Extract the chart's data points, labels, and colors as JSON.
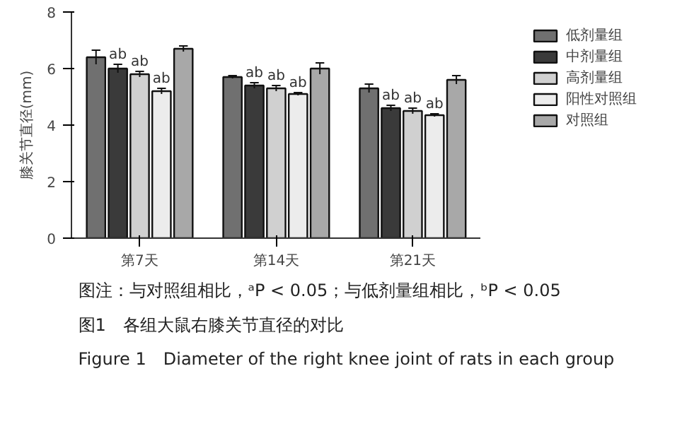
{
  "chart_data": {
    "type": "bar",
    "title": "图1　各组大鼠右膝关节直径的对比",
    "subtitle": "Figure 1　Diameter of the right knee joint of rats in each group",
    "ylabel": "膝关节直径(mm)",
    "annotations": [
      "图注：与对照组相比，ᵃP < 0.05；与低剂量组相比，ᵇP < 0.05"
    ],
    "categories": [
      "第7天",
      "第14天",
      "第21天"
    ],
    "series": [
      {
        "name": "低剂量组",
        "color": "#707070",
        "values": [
          6.4,
          5.7,
          5.3
        ],
        "errors": [
          0.25,
          0.05,
          0.15
        ]
      },
      {
        "name": "中剂量组",
        "color": "#3a3a3a",
        "values": [
          6.0,
          5.4,
          4.6
        ],
        "errors": [
          0.15,
          0.1,
          0.1
        ],
        "value_labels": [
          "ab",
          "ab",
          "ab"
        ]
      },
      {
        "name": "高剂量组",
        "color": "#d0d0d0",
        "values": [
          5.8,
          5.3,
          4.5
        ],
        "errors": [
          0.1,
          0.1,
          0.1
        ],
        "value_labels": [
          "ab",
          "ab",
          "ab"
        ]
      },
      {
        "name": "阳性对照组",
        "color": "#ececec",
        "values": [
          5.2,
          5.1,
          4.35
        ],
        "errors": [
          0.1,
          0.05,
          0.05
        ],
        "value_labels": [
          "ab",
          "ab",
          "ab"
        ]
      },
      {
        "name": "对照组",
        "color": "#a8a8a8",
        "values": [
          6.7,
          6.0,
          5.6
        ],
        "errors": [
          0.1,
          0.2,
          0.15
        ]
      }
    ],
    "ylim": [
      0,
      8
    ],
    "yticks": [
      0,
      2,
      4,
      6,
      8
    ],
    "grid": false,
    "legend": "right"
  }
}
